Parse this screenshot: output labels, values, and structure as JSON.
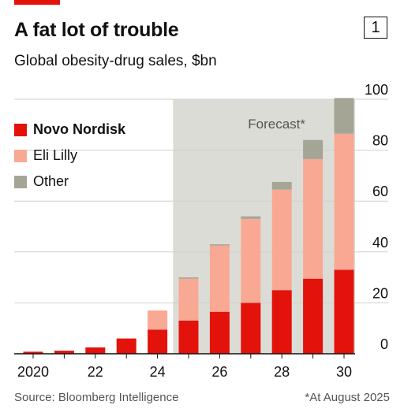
{
  "header": {
    "title": "A fat lot of trouble",
    "subtitle": "Global obesity-drug sales, $bn",
    "chart_number": "1"
  },
  "footer": {
    "source": "Source: Bloomberg Intelligence",
    "footnote": "*At August 2025"
  },
  "colors": {
    "novo": "#e3120b",
    "lilly": "#f9a893",
    "other": "#a5a596",
    "forecast_shade": "#dcdcd6",
    "grid": "#cfcfcf",
    "axis": "#111111",
    "accent": "#e3120b"
  },
  "chart_data": {
    "type": "bar",
    "stacked": true,
    "categories": [
      "2020",
      "2021",
      "2022",
      "2023",
      "2024",
      "2025",
      "2026",
      "2027",
      "2028",
      "2029",
      "2030"
    ],
    "x_tick_labels": [
      "2020",
      "",
      "22",
      "",
      "24",
      "",
      "26",
      "",
      "28",
      "",
      "30"
    ],
    "series": [
      {
        "name": "Novo Nordisk",
        "values": [
          0.8,
          1.2,
          2.5,
          6,
          9.5,
          13,
          16.5,
          20,
          25,
          29.5,
          33
        ]
      },
      {
        "name": "Eli Lilly",
        "values": [
          0,
          0,
          0,
          0,
          7.5,
          16.5,
          26,
          33,
          39.5,
          47,
          53.5
        ]
      },
      {
        "name": "Other",
        "values": [
          0,
          0,
          0,
          0,
          0,
          0.5,
          0.5,
          1,
          3,
          7.5,
          14
        ]
      }
    ],
    "forecast_label": "Forecast*",
    "forecast_start_category": "2025",
    "ylim": [
      0,
      100
    ],
    "y_ticks": [
      0,
      20,
      40,
      60,
      80,
      100
    ],
    "y_axis_side": "right",
    "grid": true,
    "legend_position": "top-left"
  }
}
